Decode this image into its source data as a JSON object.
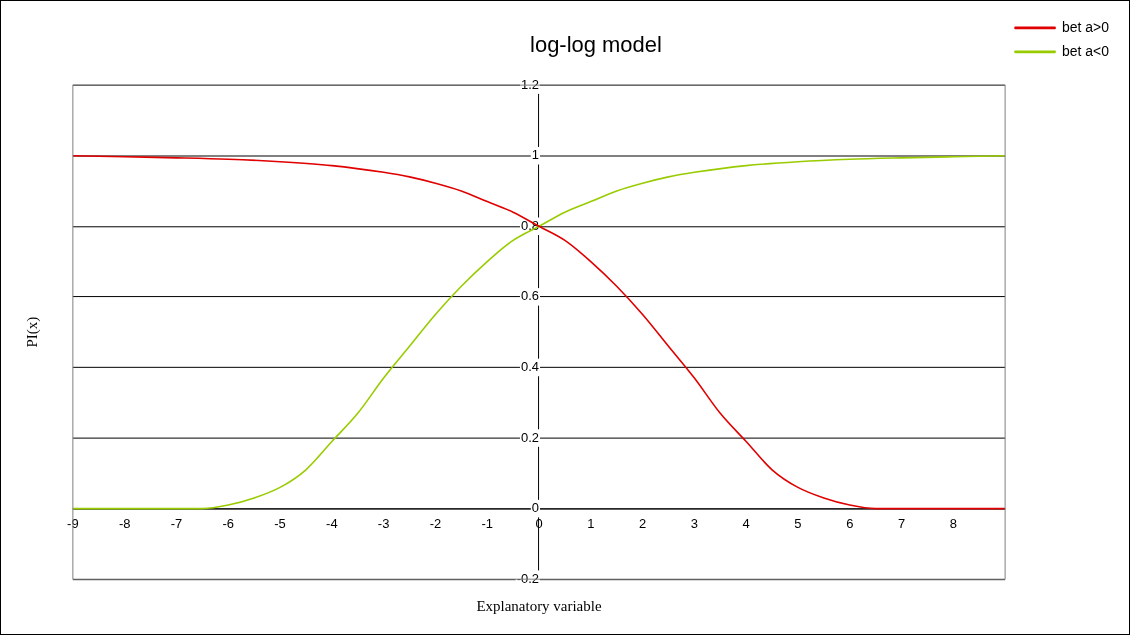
{
  "chart_data": {
    "type": "line",
    "title": "log-log model",
    "xlabel": "Explanatory variable",
    "ylabel": "PI(x)",
    "xlim": [
      -9,
      9
    ],
    "xticks": [
      -9,
      -8,
      -7,
      -6,
      -5,
      -4,
      -3,
      -2,
      -1,
      0,
      1,
      2,
      3,
      4,
      5,
      6,
      7,
      8
    ],
    "ylim": [
      -0.2,
      1.2
    ],
    "yticks": [
      -0.2,
      0,
      0.2,
      0.4,
      0.6,
      0.8,
      1,
      1.2
    ],
    "grid": "y",
    "legend": "right",
    "marker": "none",
    "line_style": "solid",
    "series": [
      {
        "name": "bet a>0",
        "color": "#e00000",
        "x": [
          -9,
          -8,
          -7,
          -6,
          -5,
          -4,
          -3,
          -2.5,
          -2,
          -1.5,
          -1,
          -0.5,
          0,
          0.5,
          1,
          1.5,
          2,
          2.5,
          3,
          3.5,
          4,
          4.5,
          5,
          5.5,
          6,
          6.5,
          7,
          8,
          9
        ],
        "values": [
          1,
          0.997,
          0.994,
          0.99,
          0.983,
          0.972,
          0.953,
          0.94,
          0.922,
          0.9,
          0.87,
          0.84,
          0.8,
          0.76,
          0.7,
          0.63,
          0.55,
          0.46,
          0.37,
          0.27,
          0.19,
          0.11,
          0.06,
          0.03,
          0.01,
          0,
          0,
          0,
          0
        ]
      },
      {
        "name": "bet a<0",
        "color": "#99cc00",
        "x": [
          -9,
          -8,
          -7,
          -6.5,
          -6,
          -5.5,
          -5,
          -4.5,
          -4,
          -3.5,
          -3,
          -2.5,
          -2,
          -1.5,
          -1,
          -0.5,
          0,
          0.5,
          1,
          1.5,
          2,
          2.5,
          3,
          4,
          5,
          6,
          7,
          8,
          9
        ],
        "values": [
          0,
          0,
          0,
          0,
          0.01,
          0.03,
          0.06,
          0.11,
          0.19,
          0.27,
          0.37,
          0.46,
          0.55,
          0.63,
          0.7,
          0.76,
          0.8,
          0.84,
          0.87,
          0.9,
          0.922,
          0.94,
          0.953,
          0.972,
          0.983,
          0.99,
          0.994,
          0.997,
          1
        ]
      }
    ]
  }
}
